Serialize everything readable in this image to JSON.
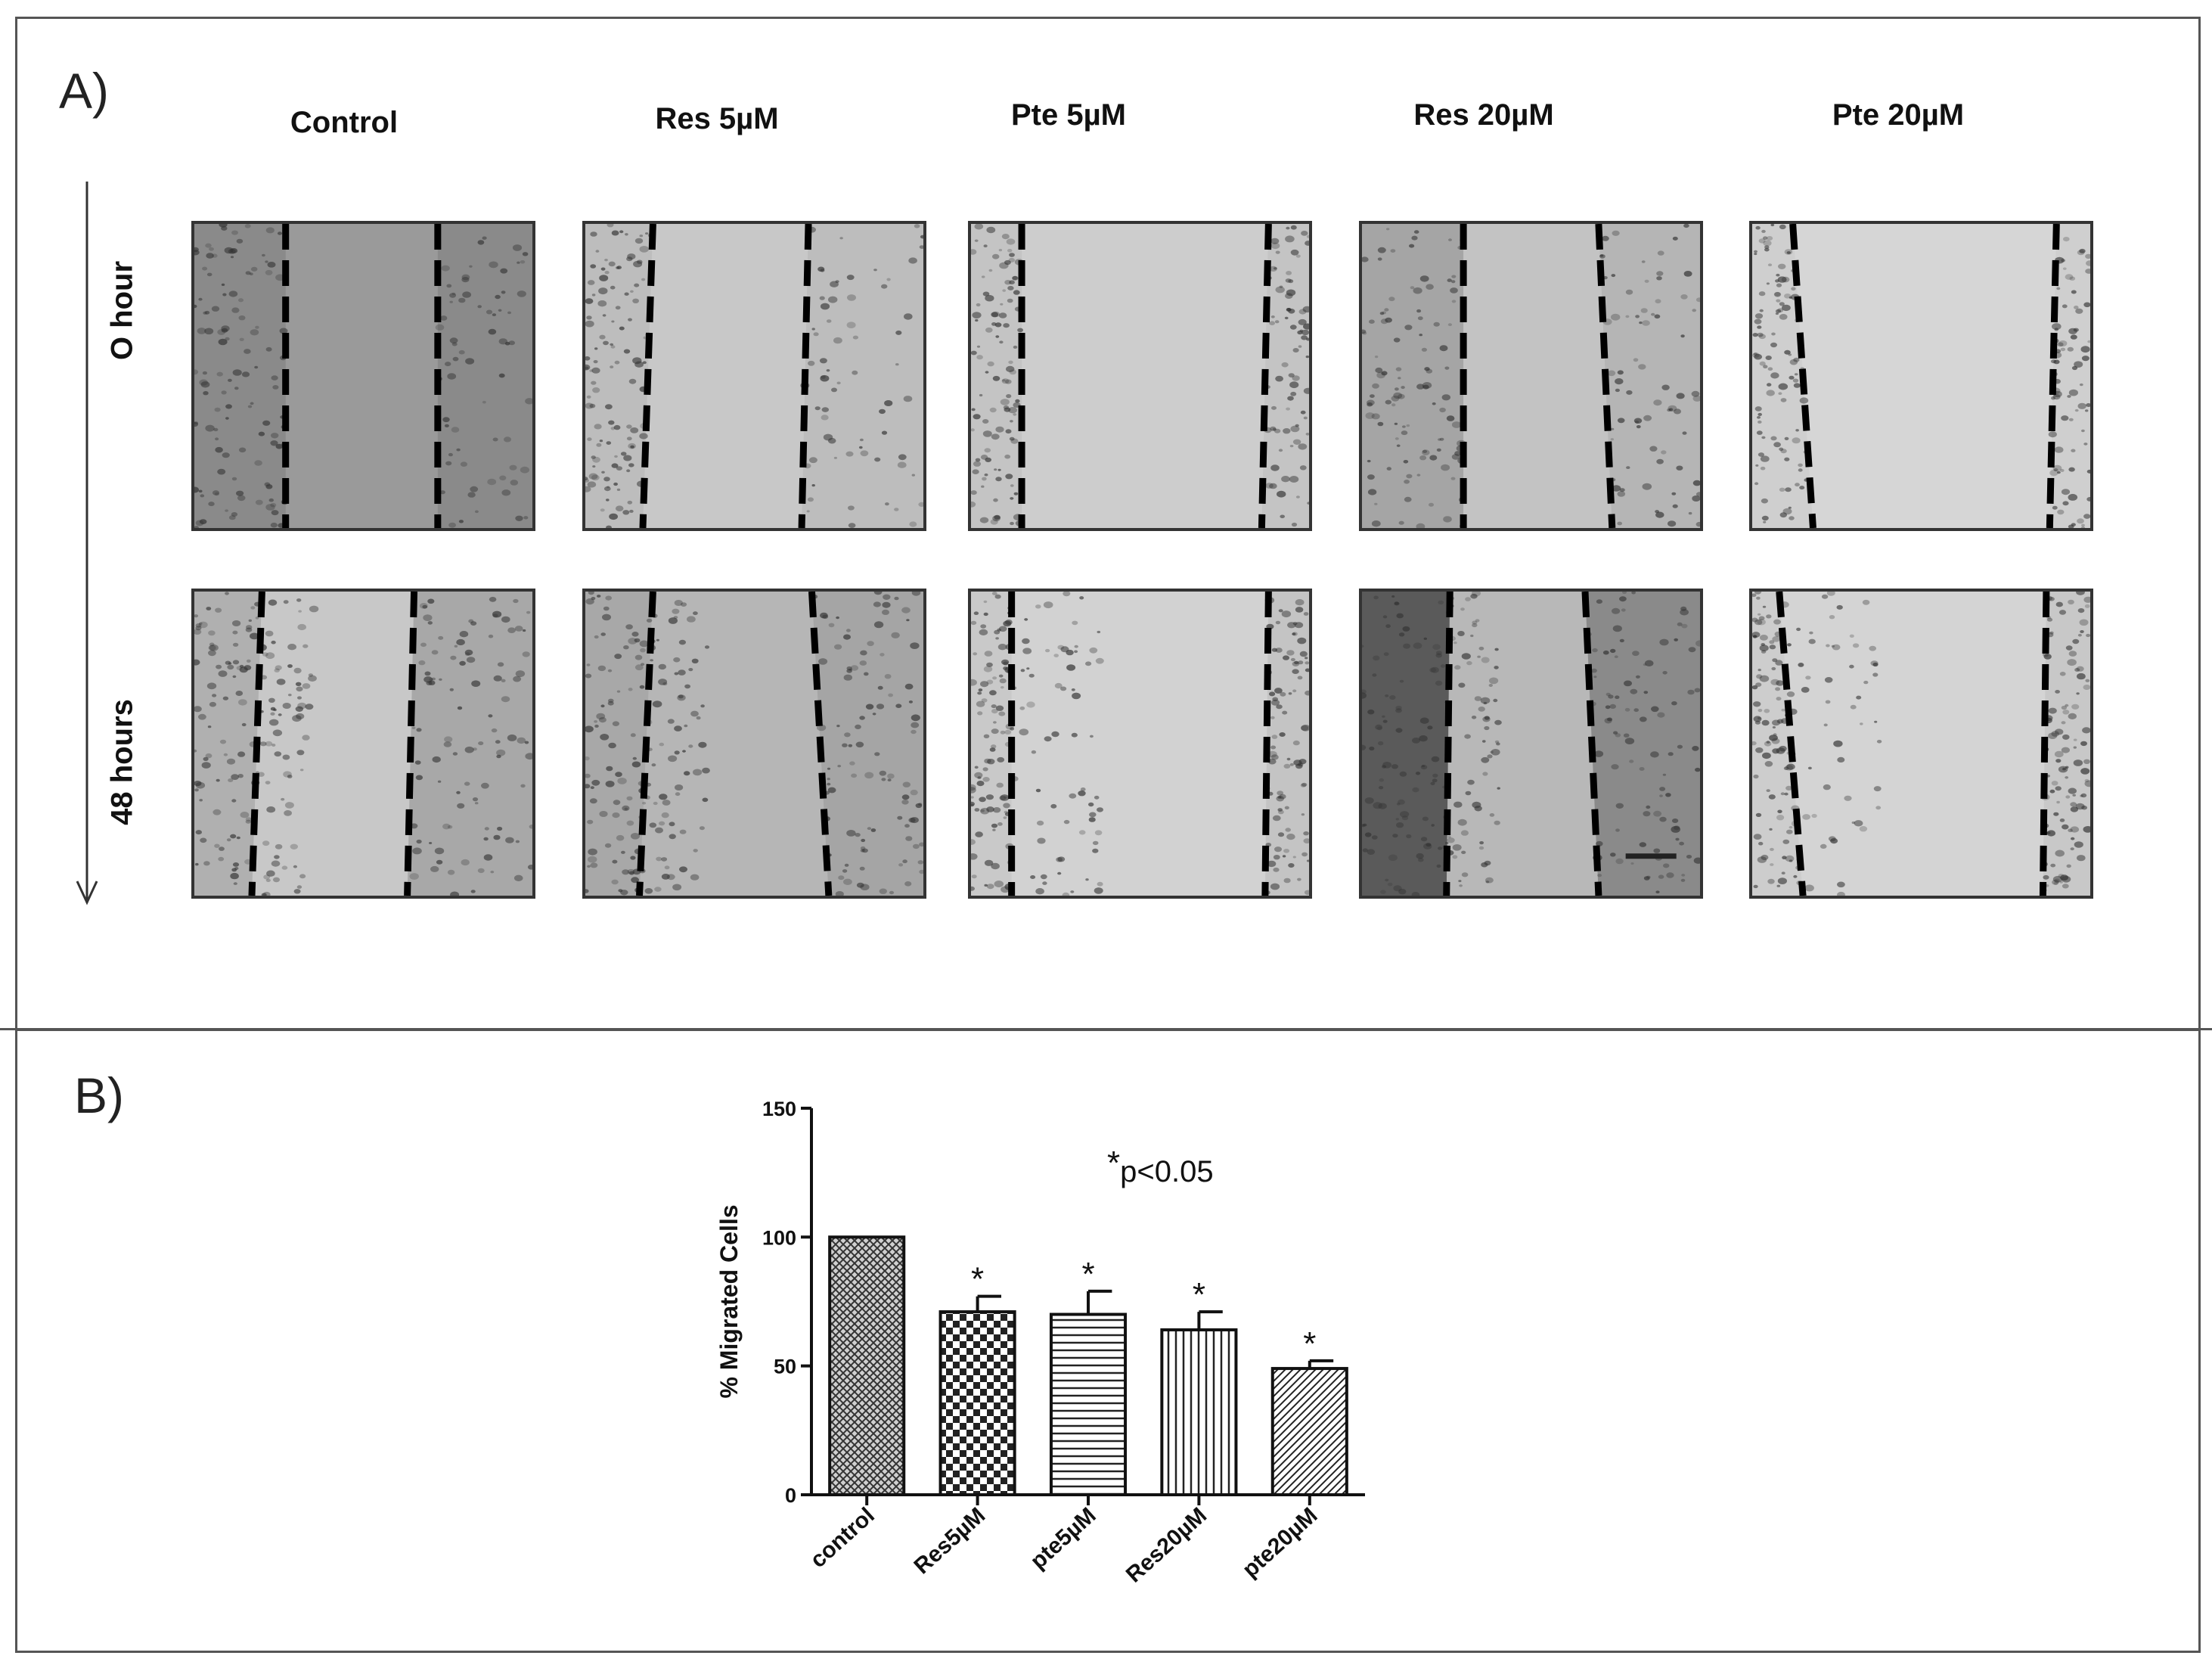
{
  "panel_a": {
    "label": "A)",
    "columns": [
      "Control",
      "Res 5µM",
      "Pte 5µM",
      "Res 20µM",
      "Pte 20µM"
    ],
    "rows": [
      "O hour",
      "48 hours"
    ]
  },
  "panel_b": {
    "label": "B)",
    "annotation": {
      "star": "*",
      "text": "p<0.05"
    }
  },
  "colors": {
    "border": "#555555",
    "bar_outline": "#111111",
    "text": "#111111"
  },
  "chart_data": {
    "type": "bar",
    "title": "",
    "xlabel": "",
    "ylabel": "% Migrated Cells",
    "ylim": [
      0,
      150
    ],
    "yticks": [
      "0",
      "50",
      "100",
      "150"
    ],
    "categories": [
      "control",
      "Res5µM",
      "pte5µM",
      "Res20µM",
      "pte20µM"
    ],
    "values": [
      100,
      71,
      70,
      64,
      49
    ],
    "errors": [
      0,
      6,
      9,
      7,
      3
    ],
    "significance": [
      "",
      "*",
      "*",
      "*",
      "*"
    ],
    "patterns": [
      "crosshatch-fine",
      "checker",
      "horizontal-lines",
      "vertical-lines",
      "diagonal-lines"
    ],
    "grid": false,
    "legend": "none"
  }
}
